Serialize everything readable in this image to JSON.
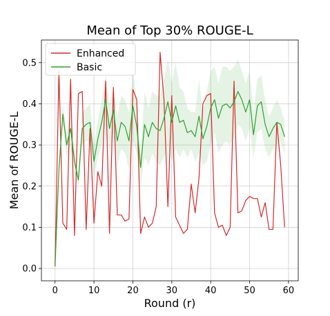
{
  "chart_data": {
    "type": "line",
    "title": "Mean of Top 30% ROUGE-L",
    "xlabel": "Round (r)",
    "ylabel": "Mean of ROUGE-L",
    "xlim": [
      -3.5,
      62.5
    ],
    "ylim": [
      -0.03,
      0.555
    ],
    "xticks": [
      0,
      10,
      20,
      30,
      40,
      50,
      60
    ],
    "yticks": [
      0.0,
      0.1,
      0.2,
      0.3,
      0.4,
      0.5
    ],
    "xtick_labels": [
      "0",
      "10",
      "20",
      "30",
      "40",
      "50",
      "60"
    ],
    "ytick_labels": [
      "0.0",
      "0.1",
      "0.2",
      "0.3",
      "0.4",
      "0.5"
    ],
    "grid": true,
    "legend_position": "top-left",
    "colors": {
      "enhanced": "#d62728",
      "basic": "#2ca02c",
      "band": "#2ca02c"
    },
    "series": [
      {
        "name": "Enhanced",
        "color": "#d62728",
        "x": [
          0,
          1,
          2,
          3,
          4,
          5,
          6,
          7,
          8,
          9,
          10,
          11,
          12,
          13,
          14,
          15,
          16,
          17,
          18,
          19,
          20,
          21,
          22,
          23,
          24,
          25,
          26,
          27,
          28,
          29,
          30,
          31,
          32,
          33,
          34,
          35,
          36,
          37,
          38,
          39,
          40,
          41,
          42,
          43,
          44,
          45,
          46,
          47,
          48,
          49,
          50,
          51,
          52,
          53,
          54,
          55,
          56,
          57,
          58,
          59
        ],
        "values": [
          0.005,
          0.48,
          0.11,
          0.095,
          0.46,
          0.08,
          0.425,
          0.43,
          0.095,
          0.34,
          0.11,
          0.235,
          0.2,
          0.455,
          0.085,
          0.44,
          0.13,
          0.13,
          0.115,
          0.12,
          0.435,
          0.41,
          0.085,
          0.125,
          0.1,
          0.11,
          0.15,
          0.525,
          0.41,
          0.15,
          0.42,
          0.125,
          0.105,
          0.085,
          0.095,
          0.205,
          0.135,
          0.22,
          0.4,
          0.42,
          0.425,
          0.135,
          0.1,
          0.105,
          0.08,
          0.1,
          0.455,
          0.135,
          0.14,
          0.165,
          0.175,
          0.17,
          0.17,
          0.125,
          0.16,
          0.095,
          0.095,
          0.355,
          0.25,
          0.1
        ]
      },
      {
        "name": "Basic",
        "color": "#2ca02c",
        "x": [
          0,
          1,
          2,
          3,
          4,
          5,
          6,
          7,
          8,
          9,
          10,
          11,
          12,
          13,
          14,
          15,
          16,
          17,
          18,
          19,
          20,
          21,
          22,
          23,
          24,
          25,
          26,
          27,
          28,
          29,
          30,
          31,
          32,
          33,
          34,
          35,
          36,
          37,
          38,
          39,
          40,
          41,
          42,
          43,
          44,
          45,
          46,
          47,
          48,
          49,
          50,
          51,
          52,
          53,
          54,
          55,
          56,
          57,
          58,
          59
        ],
        "values": [
          0.005,
          0.24,
          0.375,
          0.3,
          0.34,
          0.26,
          0.215,
          0.34,
          0.35,
          0.355,
          0.26,
          0.315,
          0.355,
          0.41,
          0.34,
          0.385,
          0.31,
          0.355,
          0.345,
          0.31,
          0.395,
          0.345,
          0.245,
          0.35,
          0.32,
          0.355,
          0.34,
          0.335,
          0.365,
          0.405,
          0.355,
          0.395,
          0.355,
          0.36,
          0.33,
          0.335,
          0.32,
          0.37,
          0.315,
          0.345,
          0.39,
          0.41,
          0.365,
          0.395,
          0.4,
          0.39,
          0.405,
          0.43,
          0.41,
          0.38,
          0.41,
          0.325,
          0.395,
          0.405,
          0.35,
          0.32,
          0.34,
          0.355,
          0.35,
          0.32
        ]
      }
    ],
    "band": {
      "series": "Basic",
      "lower": [
        0.005,
        0.23,
        0.35,
        0.27,
        0.3,
        0.23,
        0.2,
        0.3,
        0.31,
        0.31,
        0.22,
        0.27,
        0.3,
        0.35,
        0.28,
        0.33,
        0.25,
        0.29,
        0.28,
        0.24,
        0.31,
        0.28,
        0.2,
        0.27,
        0.25,
        0.28,
        0.26,
        0.25,
        0.27,
        0.3,
        0.26,
        0.29,
        0.27,
        0.29,
        0.27,
        0.29,
        0.26,
        0.28,
        0.25,
        0.26,
        0.3,
        0.33,
        0.28,
        0.3,
        0.31,
        0.3,
        0.32,
        0.35,
        0.34,
        0.31,
        0.34,
        0.27,
        0.33,
        0.34,
        0.29,
        0.27,
        0.29,
        0.3,
        0.31,
        0.28
      ],
      "upper": [
        0.005,
        0.25,
        0.4,
        0.33,
        0.38,
        0.29,
        0.23,
        0.38,
        0.39,
        0.4,
        0.3,
        0.36,
        0.41,
        0.47,
        0.4,
        0.44,
        0.37,
        0.42,
        0.41,
        0.38,
        0.48,
        0.41,
        0.29,
        0.43,
        0.39,
        0.43,
        0.42,
        0.42,
        0.46,
        0.51,
        0.45,
        0.5,
        0.44,
        0.43,
        0.39,
        0.38,
        0.38,
        0.46,
        0.38,
        0.43,
        0.48,
        0.49,
        0.45,
        0.49,
        0.49,
        0.48,
        0.49,
        0.51,
        0.48,
        0.45,
        0.48,
        0.38,
        0.46,
        0.47,
        0.41,
        0.37,
        0.39,
        0.41,
        0.39,
        0.36
      ]
    }
  }
}
